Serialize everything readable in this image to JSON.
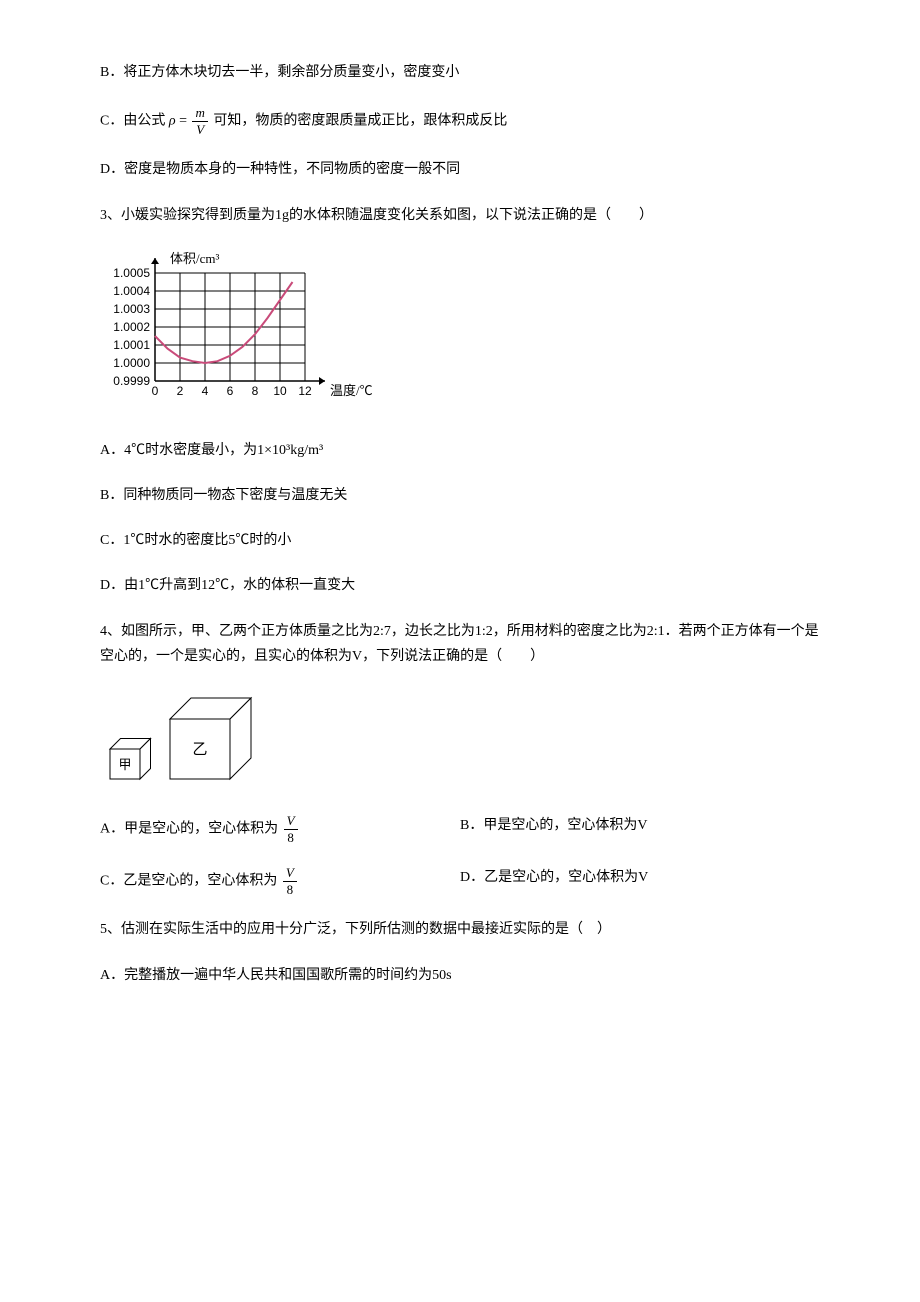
{
  "q2": {
    "optB": "B．将正方体木块切去一半，剩余部分质量变小，密度变小",
    "optC_prefix": "C．由公式",
    "optC_rho": "ρ",
    "optC_eq": "=",
    "optC_num": "m",
    "optC_den": "V",
    "optC_suffix": "可知，物质的密度跟质量成正比，跟体积成反比",
    "optD": "D．密度是物质本身的一种特性，不同物质的密度一般不同"
  },
  "q3": {
    "text": "3、小媛实验探究得到质量为1g的水体积随温度变化关系如图，以下说法正确的是（　　）",
    "chart": {
      "type": "line",
      "ylabel": "体积/cm³",
      "xlabel": "温度/℃",
      "yticks": [
        "0.9999",
        "1.0000",
        "1.0001",
        "1.0002",
        "1.0003",
        "1.0004",
        "1.0005"
      ],
      "xticks": [
        "0",
        "2",
        "4",
        "6",
        "8",
        "10",
        "12"
      ],
      "line_color": "#c94b7a",
      "grid_color": "#000000",
      "background_color": "#ffffff",
      "points": [
        {
          "x": 0,
          "y": 1.00015
        },
        {
          "x": 1,
          "y": 1.00008
        },
        {
          "x": 2,
          "y": 1.00003
        },
        {
          "x": 3,
          "y": 1.00001
        },
        {
          "x": 4,
          "y": 1.0
        },
        {
          "x": 5,
          "y": 1.00001
        },
        {
          "x": 6,
          "y": 1.00004
        },
        {
          "x": 7,
          "y": 1.00009
        },
        {
          "x": 8,
          "y": 1.00016
        },
        {
          "x": 9,
          "y": 1.00025
        },
        {
          "x": 10,
          "y": 1.00035
        },
        {
          "x": 11,
          "y": 1.00045
        }
      ]
    },
    "optA": "A．4℃时水密度最小，为1×10³kg/m³",
    "optB": "B．同种物质同一物态下密度与温度无关",
    "optC": "C．1℃时水的密度比5℃时的小",
    "optD": "D．由1℃升高到12℃，水的体积一直变大"
  },
  "q4": {
    "text": "4、如图所示，甲、乙两个正方体质量之比为2:7，边长之比为1:2，所用材料的密度之比为2:1．若两个正方体有一个是空心的，一个是实心的，且实心的体积为V，下列说法正确的是（　　）",
    "cubes": {
      "label_jia": "甲",
      "label_yi": "乙",
      "stroke": "#000000",
      "jia_size": 30,
      "yi_size": 60
    },
    "optA_prefix": "A．甲是空心的，空心体积为",
    "optA_num": "V",
    "optA_den": "8",
    "optB": "B．甲是空心的，空心体积为V",
    "optC_prefix": "C．乙是空心的，空心体积为",
    "optC_num": "V",
    "optC_den": "8",
    "optD": "D．乙是空心的，空心体积为V"
  },
  "q5": {
    "text": "5、估测在实际生活中的应用十分广泛，下列所估测的数据中最接近实际的是（　）",
    "optA": "A．完整播放一遍中华人民共和国国歌所需的时间约为50s"
  }
}
